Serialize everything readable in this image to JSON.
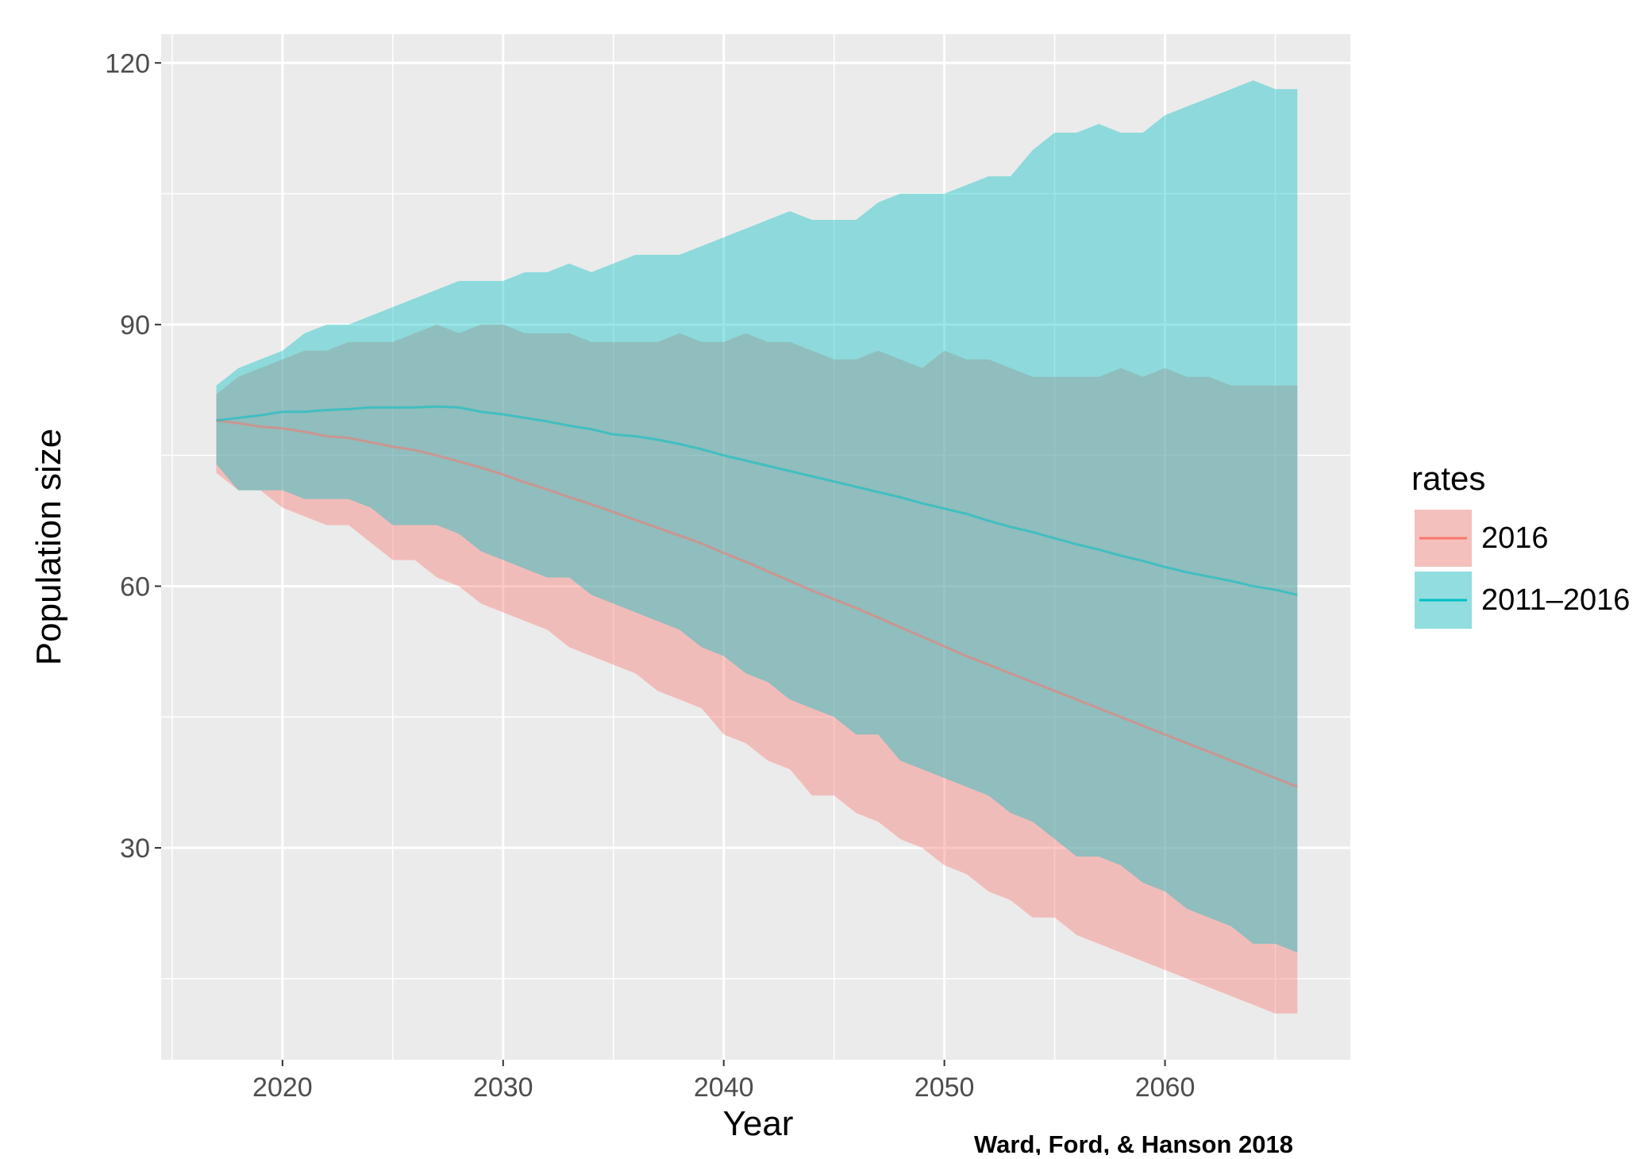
{
  "chart_data": {
    "type": "ribbon",
    "xlabel": "Year",
    "ylabel": "Population size",
    "caption": "Ward, Ford, & Hanson 2018",
    "legend_title": "rates",
    "legend": "right",
    "grid": true,
    "minor_grid": true,
    "xlim": [
      2014.5,
      2068.4
    ],
    "ylim": [
      5.7,
      123.3
    ],
    "xticks": [
      2020,
      2030,
      2040,
      2050,
      2060
    ],
    "yticks": [
      30,
      60,
      90,
      120
    ],
    "x": [
      2017,
      2018,
      2019,
      2020,
      2021,
      2022,
      2023,
      2024,
      2025,
      2026,
      2027,
      2028,
      2029,
      2030,
      2031,
      2032,
      2033,
      2034,
      2035,
      2036,
      2037,
      2038,
      2039,
      2040,
      2041,
      2042,
      2043,
      2044,
      2045,
      2046,
      2047,
      2048,
      2049,
      2050,
      2051,
      2052,
      2053,
      2054,
      2055,
      2056,
      2057,
      2058,
      2059,
      2060,
      2061,
      2062,
      2063,
      2064,
      2065,
      2066
    ],
    "series": [
      {
        "name": "2016",
        "color": "#F8766D",
        "values": [
          79,
          78.7,
          78.3,
          78.1,
          77.7,
          77.2,
          77,
          76.5,
          76,
          75.6,
          75,
          74.3,
          73.6,
          72.8,
          71.9,
          71.1,
          70.2,
          69.4,
          68.5,
          67.6,
          66.7,
          65.8,
          64.9,
          63.8,
          62.8,
          61.7,
          60.6,
          59.5,
          58.5,
          57.5,
          56.4,
          55.3,
          54.2,
          53.1,
          52,
          51,
          50,
          49,
          48,
          47,
          46,
          45,
          44,
          43,
          42,
          41,
          40,
          39,
          38,
          37
        ],
        "lower": [
          73,
          71,
          71,
          69,
          68,
          67,
          67,
          65,
          63,
          63,
          61,
          60,
          58,
          57,
          56,
          55,
          53,
          52,
          51,
          50,
          48,
          47,
          46,
          43,
          42,
          40,
          39,
          36,
          36,
          34,
          33,
          31,
          30,
          28,
          27,
          25,
          24,
          22,
          22,
          20,
          19,
          18,
          17,
          16,
          15,
          14,
          13,
          12,
          11,
          11
        ],
        "upper": [
          82,
          84,
          85,
          86,
          87,
          87,
          88,
          88,
          88,
          89,
          90,
          89,
          90,
          90,
          89,
          89,
          89,
          88,
          88,
          88,
          88,
          89,
          88,
          88,
          89,
          88,
          88,
          87,
          86,
          86,
          87,
          86,
          85,
          87,
          86,
          86,
          85,
          84,
          84,
          84,
          84,
          85,
          84,
          85,
          84,
          84,
          83,
          83,
          83,
          83
        ]
      },
      {
        "name": "2011–2016",
        "color": "#00BFC4",
        "values": [
          79,
          79.3,
          79.6,
          80,
          80,
          80.2,
          80.3,
          80.5,
          80.5,
          80.5,
          80.6,
          80.5,
          80,
          79.7,
          79.3,
          78.9,
          78.4,
          78,
          77.4,
          77.2,
          76.8,
          76.3,
          75.7,
          75,
          74.4,
          73.8,
          73.2,
          72.6,
          72,
          71.4,
          70.8,
          70.2,
          69.5,
          68.9,
          68.3,
          67.5,
          66.8,
          66.2,
          65.5,
          64.8,
          64.2,
          63.5,
          62.9,
          62.2,
          61.6,
          61.1,
          60.6,
          60,
          59.6,
          59
        ],
        "lower": [
          74,
          71,
          71,
          71,
          70,
          70,
          70,
          69,
          67,
          67,
          67,
          66,
          64,
          63,
          62,
          61,
          61,
          59,
          58,
          57,
          56,
          55,
          53,
          52,
          50,
          49,
          47,
          46,
          45,
          43,
          43,
          40,
          39,
          38,
          37,
          36,
          34,
          33,
          31,
          29,
          29,
          28,
          26,
          25,
          23,
          22,
          21,
          19,
          19,
          18
        ],
        "upper": [
          83,
          85,
          86,
          87,
          89,
          90,
          90,
          91,
          92,
          93,
          94,
          95,
          95,
          95,
          96,
          96,
          97,
          96,
          97,
          98,
          98,
          98,
          99,
          100,
          101,
          102,
          103,
          102,
          102,
          102,
          104,
          105,
          105,
          105,
          106,
          107,
          107,
          110,
          112,
          112,
          113,
          112,
          112,
          114,
          115,
          116,
          117,
          118,
          117,
          117
        ]
      }
    ]
  }
}
